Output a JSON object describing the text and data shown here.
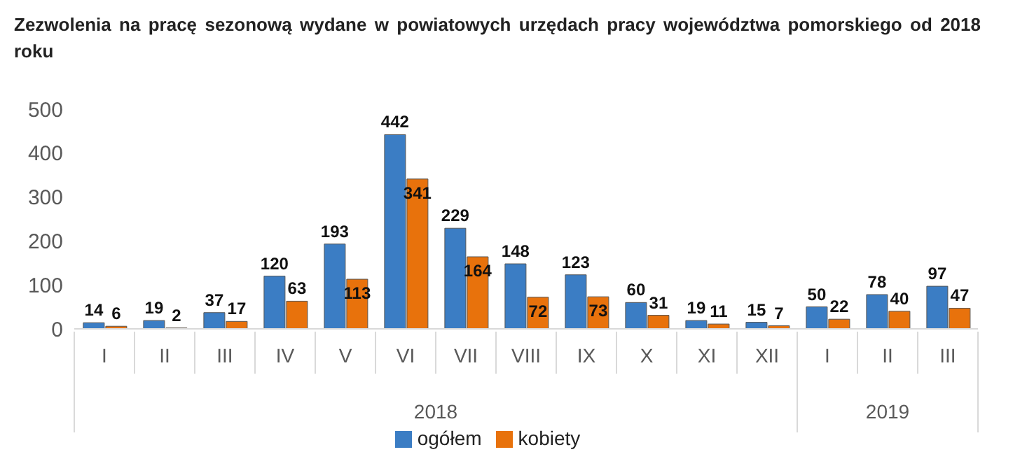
{
  "chart_data": {
    "type": "bar",
    "title": "Zezwolenia na pracę sezonową wydane w powiatowych urzędach pracy województwa pomorskiego od 2018 roku",
    "categories": [
      "I",
      "II",
      "III",
      "IV",
      "V",
      "VI",
      "VII",
      "VIII",
      "IX",
      "X",
      "XI",
      "XII",
      "I",
      "II",
      "III"
    ],
    "series": [
      {
        "name": "ogółem",
        "color": "#3b7dc4",
        "values": [
          14,
          19,
          37,
          120,
          193,
          442,
          229,
          148,
          123,
          60,
          19,
          15,
          50,
          78,
          97
        ]
      },
      {
        "name": "kobiety",
        "color": "#e8720c",
        "values": [
          6,
          2,
          17,
          63,
          113,
          341,
          164,
          72,
          73,
          31,
          11,
          7,
          22,
          40,
          47
        ]
      }
    ],
    "annotations": [
      "2018",
      "2019"
    ],
    "ylim": [
      0,
      500
    ],
    "yticks": [
      0,
      100,
      200,
      300,
      400,
      500
    ],
    "legend": "bottom",
    "data_labels": true
  }
}
